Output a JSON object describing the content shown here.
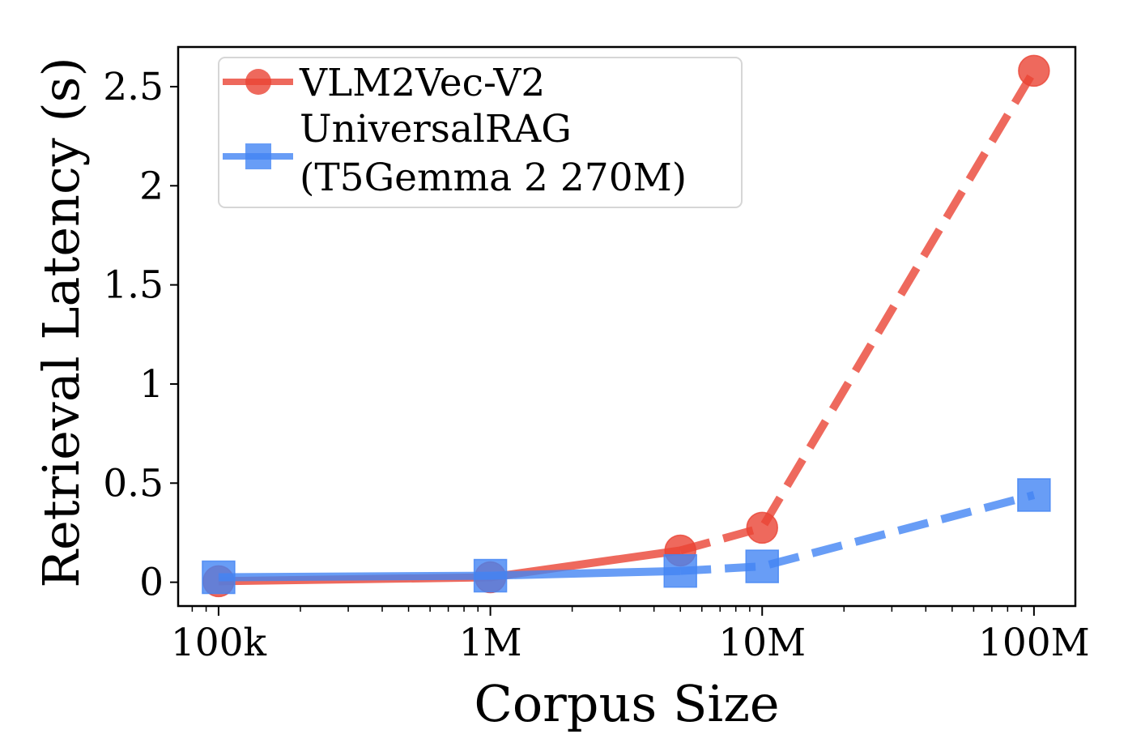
{
  "chart_data": {
    "type": "line",
    "title": "",
    "xlabel": "Corpus Size",
    "ylabel": "Retrieval Latency (s)",
    "xscale": "log",
    "xlim": [
      71000,
      142000000
    ],
    "ylim": [
      -0.12,
      2.7
    ],
    "x_ticks": [
      {
        "value": 100000,
        "label": "100k"
      },
      {
        "value": 1000000,
        "label": "1M"
      },
      {
        "value": 10000000,
        "label": "10M"
      },
      {
        "value": 100000000,
        "label": "100M"
      }
    ],
    "y_ticks": [
      {
        "value": 0,
        "label": "0"
      },
      {
        "value": 0.5,
        "label": "0.5"
      },
      {
        "value": 1,
        "label": "1"
      },
      {
        "value": 1.5,
        "label": "1.5"
      },
      {
        "value": 2,
        "label": "2"
      },
      {
        "value": 2.5,
        "label": "2.5"
      }
    ],
    "grid": false,
    "legend_position": "top-left",
    "series": [
      {
        "name": "VLM2Vec-V2",
        "color": "#EA4335",
        "marker": "circle",
        "x": [
          100000,
          1000000,
          5000000,
          10000000,
          100000000
        ],
        "values": [
          0.005,
          0.025,
          0.16,
          0.275,
          2.58
        ],
        "solid_until_index": 2
      },
      {
        "name": "UniversalRAG\n(T5Gemma 2 270M)",
        "legend_lines": [
          "UniversalRAG",
          "(T5Gemma 2 270M)"
        ],
        "color": "#4285F4",
        "marker": "square",
        "x": [
          100000,
          1000000,
          5000000,
          10000000,
          100000000
        ],
        "values": [
          0.025,
          0.033,
          0.057,
          0.08,
          0.44
        ],
        "solid_until_index": 2
      }
    ]
  }
}
